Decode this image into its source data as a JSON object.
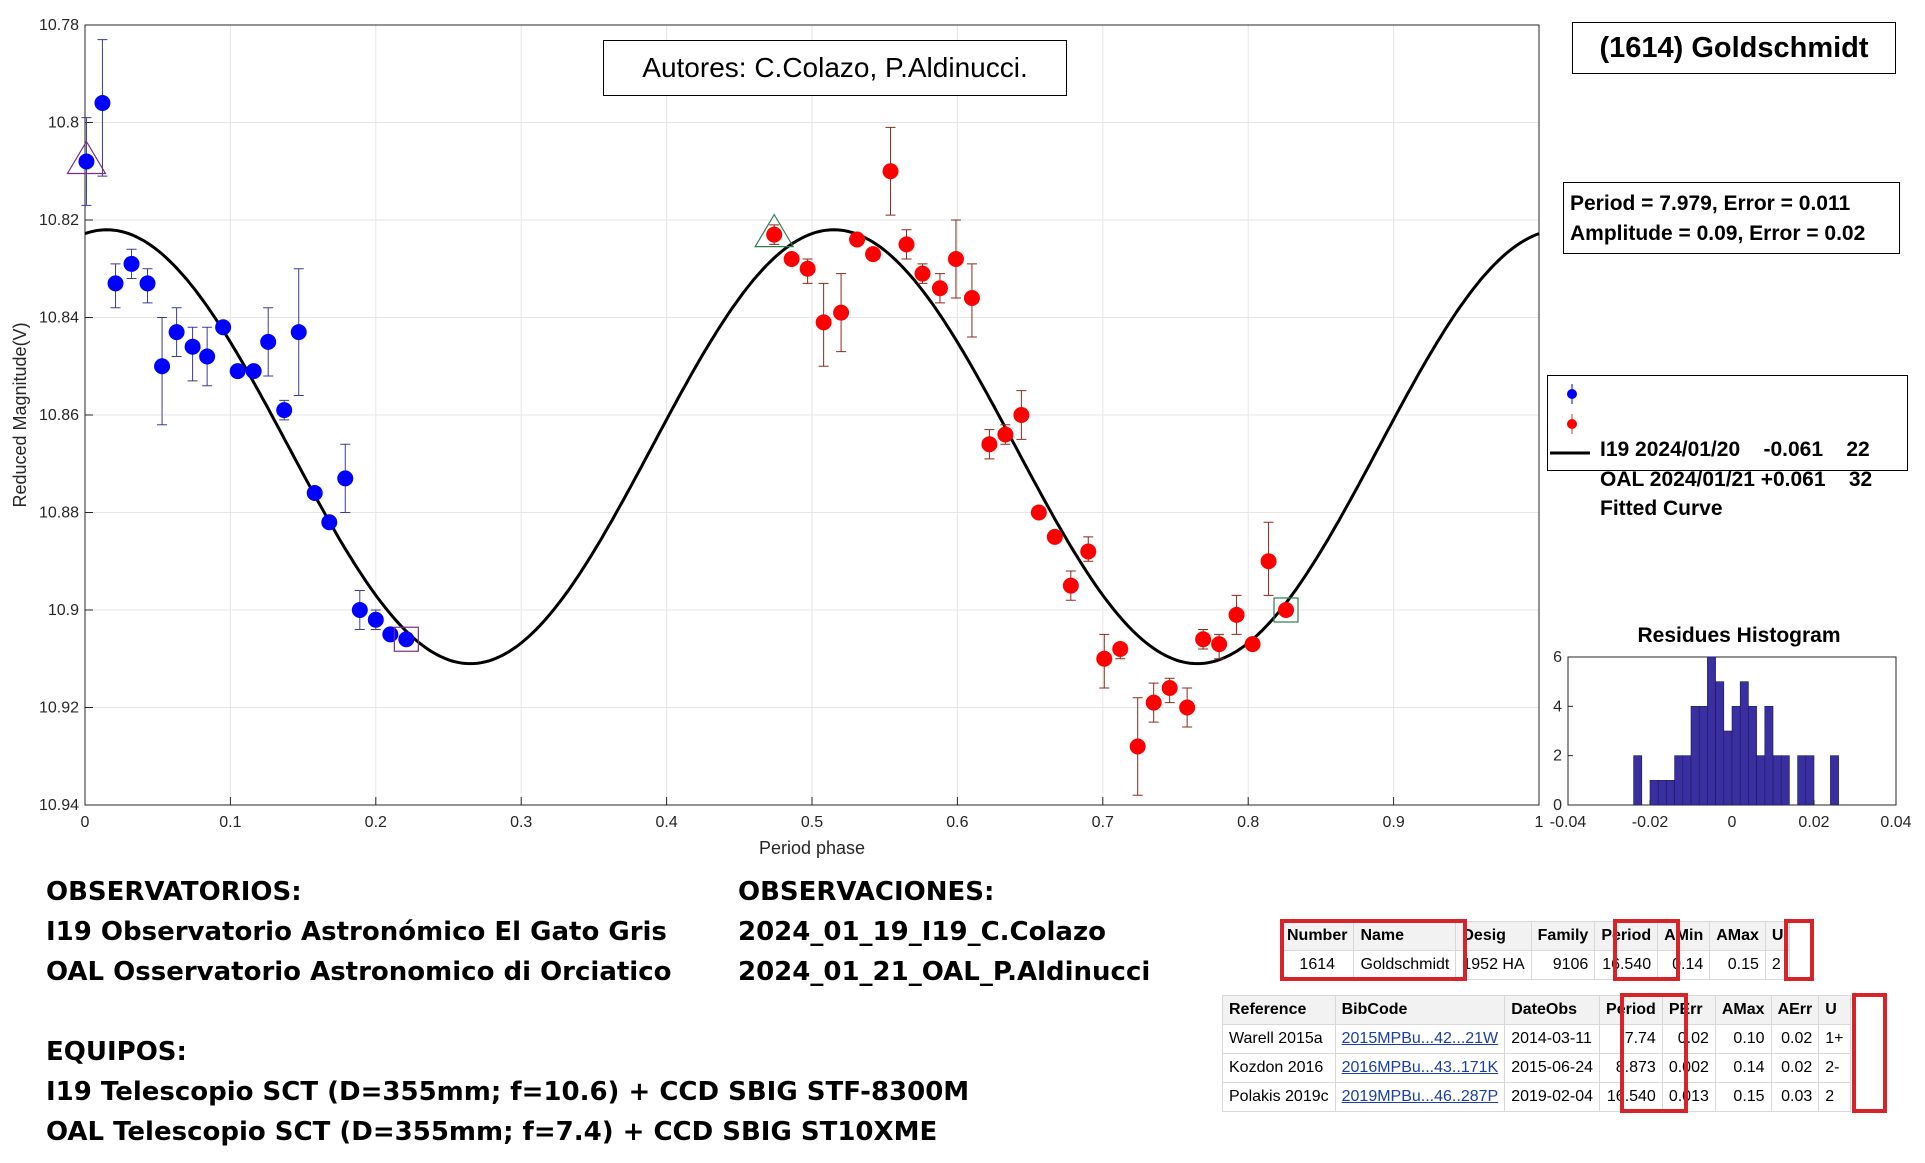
{
  "chart_data": {
    "type": "scatter",
    "xlabel": "Period phase",
    "ylabel": "Reduced Magnitude(V)",
    "xlim": [
      0,
      1
    ],
    "ylim": [
      10.78,
      10.94
    ],
    "y_reversed": true,
    "x_ticks": [
      "0",
      "0.1",
      "0.2",
      "0.3",
      "0.4",
      "0.5",
      "0.6",
      "0.7",
      "0.8",
      "0.9",
      "1"
    ],
    "y_ticks": [
      "10.78",
      "10.8",
      "10.82",
      "10.84",
      "10.86",
      "10.88",
      "10.9",
      "10.92",
      "10.94"
    ],
    "grid": true,
    "series": [
      {
        "name": "I19 2024/01/20",
        "offset": "-0.061",
        "count": "22",
        "color": "#0000ff",
        "points": [
          [
            0.001,
            10.808,
            10.799,
            10.817
          ],
          [
            0.012,
            10.796,
            10.783,
            10.811
          ],
          [
            0.021,
            10.833,
            10.829,
            10.838
          ],
          [
            0.032,
            10.829,
            10.826,
            10.832
          ],
          [
            0.043,
            10.833,
            10.83,
            10.837
          ],
          [
            0.053,
            10.85,
            10.84,
            10.862
          ],
          [
            0.063,
            10.843,
            10.838,
            10.848
          ],
          [
            0.074,
            10.846,
            10.842,
            10.853
          ],
          [
            0.084,
            10.848,
            10.842,
            10.854
          ],
          [
            0.095,
            10.842,
            10.841,
            10.843
          ],
          [
            0.105,
            10.851,
            10.85,
            10.852
          ],
          [
            0.116,
            10.851,
            10.85,
            10.852
          ],
          [
            0.126,
            10.845,
            10.838,
            10.852
          ],
          [
            0.137,
            10.859,
            10.857,
            10.861
          ],
          [
            0.147,
            10.843,
            10.83,
            10.856
          ],
          [
            0.158,
            10.876,
            10.875,
            10.877
          ],
          [
            0.168,
            10.882,
            10.881,
            10.883
          ],
          [
            0.179,
            10.873,
            10.866,
            10.88
          ],
          [
            0.189,
            10.9,
            10.896,
            10.904
          ],
          [
            0.2,
            10.902,
            10.9,
            10.904
          ],
          [
            0.21,
            10.905,
            10.904,
            10.906
          ],
          [
            0.221,
            10.906,
            10.905,
            10.907
          ]
        ]
      },
      {
        "name": "OAL 2024/01/21",
        "offset": "+0.061",
        "count": "32",
        "color": "#ff0000",
        "points": [
          [
            0.474,
            10.823,
            10.821,
            10.825
          ],
          [
            0.486,
            10.828,
            10.827,
            10.829
          ],
          [
            0.497,
            10.83,
            10.828,
            10.833
          ],
          [
            0.508,
            10.841,
            10.833,
            10.85
          ],
          [
            0.52,
            10.839,
            10.831,
            10.847
          ],
          [
            0.531,
            10.824,
            10.823,
            10.825
          ],
          [
            0.542,
            10.827,
            10.826,
            10.828
          ],
          [
            0.554,
            10.81,
            10.801,
            10.819
          ],
          [
            0.565,
            10.825,
            10.822,
            10.828
          ],
          [
            0.576,
            10.831,
            10.829,
            10.833
          ],
          [
            0.588,
            10.834,
            10.831,
            10.837
          ],
          [
            0.599,
            10.828,
            10.82,
            10.836
          ],
          [
            0.61,
            10.836,
            10.829,
            10.844
          ],
          [
            0.622,
            10.866,
            10.863,
            10.869
          ],
          [
            0.633,
            10.864,
            10.862,
            10.866
          ],
          [
            0.644,
            10.86,
            10.855,
            10.865
          ],
          [
            0.656,
            10.88,
            10.879,
            10.881
          ],
          [
            0.667,
            10.885,
            10.884,
            10.886
          ],
          [
            0.678,
            10.895,
            10.892,
            10.898
          ],
          [
            0.69,
            10.888,
            10.885,
            10.89
          ],
          [
            0.701,
            10.91,
            10.905,
            10.916
          ],
          [
            0.712,
            10.908,
            10.907,
            10.91
          ],
          [
            0.724,
            10.928,
            10.918,
            10.938
          ],
          [
            0.735,
            10.919,
            10.915,
            10.923
          ],
          [
            0.746,
            10.916,
            10.914,
            10.919
          ],
          [
            0.758,
            10.92,
            10.916,
            10.924
          ],
          [
            0.769,
            10.906,
            10.904,
            10.908
          ],
          [
            0.78,
            10.907,
            10.905,
            10.91
          ],
          [
            0.792,
            10.901,
            10.897,
            10.905
          ],
          [
            0.803,
            10.907,
            10.906,
            10.908
          ],
          [
            0.814,
            10.89,
            10.882,
            10.897
          ],
          [
            0.826,
            10.9,
            10.899,
            10.901
          ]
        ]
      }
    ],
    "fitted_curve": {
      "name": "Fitted Curve",
      "mean": 10.8665,
      "amplitude": 0.0445,
      "phase_of_min_brightness": 0.265,
      "harmonics": 2
    },
    "markers": [
      {
        "shape": "triangle",
        "x": 0.001,
        "y": 10.808,
        "color": "#7a2a8c"
      },
      {
        "shape": "square",
        "x": 0.221,
        "y": 10.906,
        "color": "#7a2a8c"
      },
      {
        "shape": "triangle",
        "x": 0.474,
        "y": 10.823,
        "color": "#2e7d4f"
      },
      {
        "shape": "square",
        "x": 0.826,
        "y": 10.9,
        "color": "#2e7d4f"
      }
    ],
    "histogram": {
      "title": "Residues Histogram",
      "type": "bar",
      "color": "#3a2fa0",
      "xlim": [
        -0.04,
        0.04
      ],
      "ylim": [
        0,
        6
      ],
      "x_ticks": [
        "-0.04",
        "-0.02",
        "0",
        "0.02",
        "0.04"
      ],
      "y_ticks": [
        "0",
        "2",
        "4",
        "6"
      ],
      "bin_width": 0.002,
      "bins": [
        [
          -0.023,
          2
        ],
        [
          -0.021,
          0
        ],
        [
          -0.019,
          1
        ],
        [
          -0.017,
          1
        ],
        [
          -0.015,
          1
        ],
        [
          -0.013,
          2
        ],
        [
          -0.011,
          2
        ],
        [
          -0.009,
          4
        ],
        [
          -0.007,
          4
        ],
        [
          -0.005,
          6
        ],
        [
          -0.003,
          5
        ],
        [
          -0.001,
          3
        ],
        [
          0.001,
          4
        ],
        [
          0.003,
          5
        ],
        [
          0.005,
          4
        ],
        [
          0.007,
          2
        ],
        [
          0.009,
          4
        ],
        [
          0.011,
          2
        ],
        [
          0.013,
          2
        ],
        [
          0.015,
          0
        ],
        [
          0.017,
          2
        ],
        [
          0.019,
          2
        ],
        [
          0.021,
          0
        ],
        [
          0.023,
          0
        ],
        [
          0.025,
          2
        ]
      ]
    }
  },
  "title_box": "Autores: C.Colazo, P.Aldinucci.",
  "object_box": "(1614) Goldschmidt",
  "fit_box": {
    "line1": "Period =  7.979, Error = 0.011",
    "line2": "Amplitude = 0.09, Error = 0.02"
  },
  "legend": {
    "row1": "I19 2024/01/20    -0.061    22",
    "row2": "OAL 2024/01/21 +0.061    32",
    "row3": "Fitted Curve"
  },
  "observatorios": {
    "heading": "OBSERVATORIOS:",
    "line1": "I19 Observatorio Astronómico El Gato Gris",
    "line2": "OAL Osservatorio Astronomico di Orciatico"
  },
  "observaciones": {
    "heading": "OBSERVACIONES:",
    "line1": "2024_01_19_I19_C.Colazo",
    "line2": "2024_01_21_OAL_P.Aldinucci"
  },
  "equipos": {
    "heading": "EQUIPOS:",
    "line1": "I19 Telescopio SCT (D=355mm; f=10.6) + CCD SBIG STF-8300M",
    "line2": "OAL Telescopio SCT (D=355mm; f=7.4) + CCD SBIG ST10XME"
  },
  "lcdb_table": {
    "headers": [
      "Number",
      "Name",
      "Desig",
      "Family",
      "Period",
      "AMin",
      "AMax",
      "U"
    ],
    "row": [
      "1614",
      "Goldschmidt",
      "1952 HA",
      "9106",
      "16.540",
      "0.14",
      "0.15",
      "2"
    ]
  },
  "ref_table": {
    "headers": [
      "Reference",
      "BibCode",
      "DateObs",
      "Period",
      "PErr",
      "AMax",
      "AErr",
      "U"
    ],
    "rows": [
      [
        "Warell 2015a",
        "2015MPBu...42...21W",
        "2014-03-11",
        "7.74",
        "0.02",
        "0.10",
        "0.02",
        "1+"
      ],
      [
        "Kozdon 2016",
        "2016MPBu...43..171K",
        "2015-06-24",
        "8.873",
        "0.002",
        "0.14",
        "0.02",
        "2-"
      ],
      [
        "Polakis 2019c",
        "2019MPBu...46..287P",
        "2019-02-04",
        "16.540",
        "0.013",
        "0.15",
        "0.03",
        "2"
      ]
    ]
  }
}
